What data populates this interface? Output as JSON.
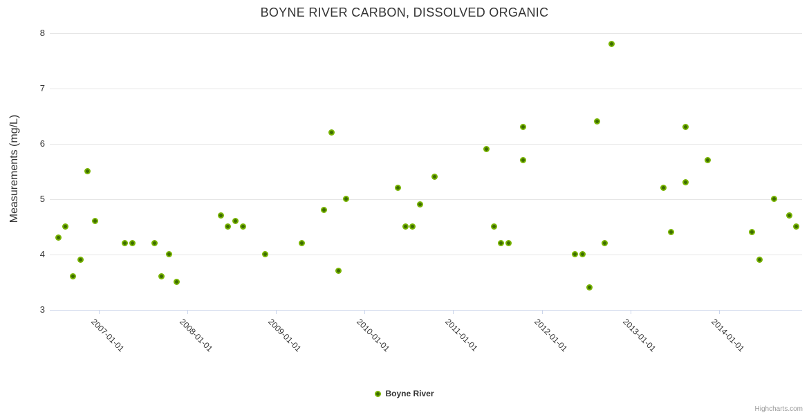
{
  "title": "BOYNE RIVER CARBON, DISSOLVED ORGANIC",
  "credit": "Highcharts.com",
  "colors": {
    "series": "#77b300",
    "series_core": "#3d6c00",
    "gridline": "#e6e6e6",
    "axis_line": "#ccd6eb",
    "text": "#333333",
    "credit_text": "#999999"
  },
  "chart_data": {
    "type": "scatter",
    "title": "BOYNE RIVER CARBON, DISSOLVED ORGANIC",
    "xlabel": "",
    "ylabel": "Measurements (mg/L)",
    "ylim": [
      3,
      8
    ],
    "yticks": [
      8,
      7,
      6,
      5,
      4,
      3
    ],
    "xticks": [
      "2007-01-01",
      "2008-01-01",
      "2009-01-01",
      "2010-01-01",
      "2011-01-01",
      "2012-01-01",
      "2013-01-01",
      "2014-01-01"
    ],
    "grid": "horizontal-only",
    "legend_position": "bottom-center",
    "series": [
      {
        "name": "Boyne River",
        "color": "#77b300",
        "data": [
          [
            "2006-07",
            4.3
          ],
          [
            "2006-08",
            4.5
          ],
          [
            "2006-09",
            3.6
          ],
          [
            "2006-10",
            3.9
          ],
          [
            "2006-11",
            5.5
          ],
          [
            "2006-12",
            4.6
          ],
          [
            "2007-04",
            4.2
          ],
          [
            "2007-05",
            4.2
          ],
          [
            "2007-08",
            4.2
          ],
          [
            "2007-09",
            3.6
          ],
          [
            "2007-10",
            4.0
          ],
          [
            "2007-11",
            3.5
          ],
          [
            "2008-05",
            4.7
          ],
          [
            "2008-06",
            4.5
          ],
          [
            "2008-07",
            4.6
          ],
          [
            "2008-08",
            4.5
          ],
          [
            "2008-11",
            4.0
          ],
          [
            "2009-04",
            4.2
          ],
          [
            "2009-07",
            4.8
          ],
          [
            "2009-08",
            6.2
          ],
          [
            "2009-09",
            3.7
          ],
          [
            "2009-10",
            5.0
          ],
          [
            "2010-05",
            5.2
          ],
          [
            "2010-06",
            4.5
          ],
          [
            "2010-07",
            4.5
          ],
          [
            "2010-08",
            4.9
          ],
          [
            "2010-10",
            5.4
          ],
          [
            "2011-05",
            5.9
          ],
          [
            "2011-06",
            4.5
          ],
          [
            "2011-07",
            4.2
          ],
          [
            "2011-08",
            4.2
          ],
          [
            "2011-10",
            5.7
          ],
          [
            "2011-10",
            6.3
          ],
          [
            "2012-05",
            4.0
          ],
          [
            "2012-06",
            4.0
          ],
          [
            "2012-07",
            3.4
          ],
          [
            "2012-08",
            6.4
          ],
          [
            "2012-09",
            4.2
          ],
          [
            "2012-10",
            7.8
          ],
          [
            "2013-05",
            5.2
          ],
          [
            "2013-06",
            4.4
          ],
          [
            "2013-08",
            6.3
          ],
          [
            "2013-08",
            5.3
          ],
          [
            "2013-11",
            5.7
          ],
          [
            "2014-05",
            4.4
          ],
          [
            "2014-06",
            3.9
          ],
          [
            "2014-08",
            5.0
          ],
          [
            "2014-10",
            4.7
          ],
          [
            "2014-11",
            4.5
          ]
        ]
      }
    ]
  }
}
